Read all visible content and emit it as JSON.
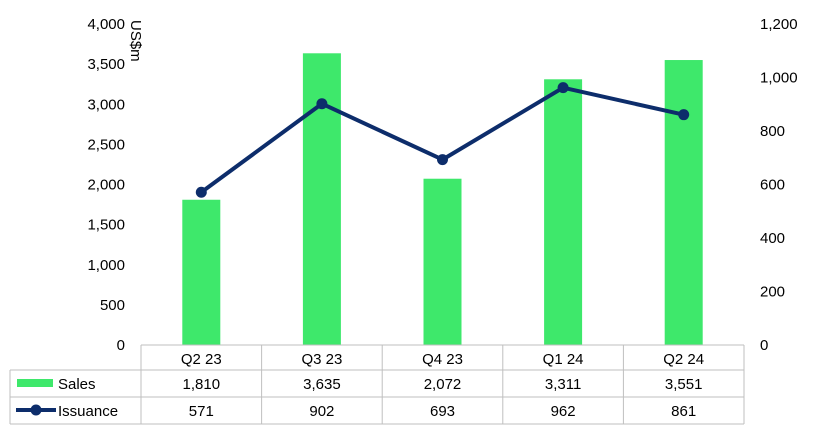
{
  "chart_data": {
    "type": "bar",
    "categories": [
      "Q2 23",
      "Q3 23",
      "Q4 23",
      "Q1 24",
      "Q2 24"
    ],
    "ylabel": "US$m",
    "ylim": [
      0,
      4000
    ],
    "yticks": [
      "0",
      "500",
      "1,000",
      "1,500",
      "2,000",
      "2,500",
      "3,000",
      "3,500",
      "4,000"
    ],
    "y2lim": [
      0,
      1200
    ],
    "y2ticks": [
      "0",
      "200",
      "400",
      "600",
      "800",
      "1,000",
      "1,200"
    ],
    "grid": false,
    "legend": "data table",
    "series": [
      {
        "name": "Sales",
        "kind": "bar",
        "axis": "left",
        "color": "#3ee86b",
        "values": [
          1810,
          3635,
          2072,
          3311,
          3551
        ],
        "labels": [
          "1,810",
          "3,635",
          "2,072",
          "3,311",
          "3,551"
        ]
      },
      {
        "name": "Issuance",
        "kind": "line",
        "axis": "right",
        "color": "#0d2d6b",
        "values": [
          571,
          902,
          693,
          962,
          861
        ],
        "labels": [
          "571",
          "902",
          "693",
          "962",
          "861"
        ]
      }
    ]
  }
}
